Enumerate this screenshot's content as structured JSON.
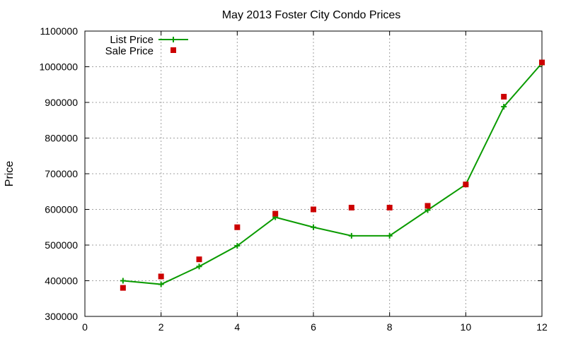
{
  "chart_data": {
    "type": "line",
    "title": "May 2013 Foster City Condo Prices",
    "xlabel": "",
    "ylabel": "Price",
    "xlim": [
      0,
      12
    ],
    "ylim": [
      300000,
      1100000
    ],
    "x_ticks": [
      0,
      2,
      4,
      6,
      8,
      10,
      12
    ],
    "y_ticks": [
      300000,
      400000,
      500000,
      600000,
      700000,
      800000,
      900000,
      1000000,
      1100000
    ],
    "grid": true,
    "legend": "top-left",
    "series": [
      {
        "name": "List Price",
        "style": "line-with-plus-markers",
        "color": "#0a9b00",
        "x": [
          1,
          2,
          3,
          4,
          5,
          6,
          7,
          8,
          9,
          10,
          11,
          12
        ],
        "y": [
          400000,
          390000,
          440000,
          498000,
          578000,
          550000,
          526000,
          526000,
          598000,
          670000,
          888000,
          1010000
        ]
      },
      {
        "name": "Sale Price",
        "style": "square-markers",
        "color": "#cc0000",
        "x": [
          1,
          2,
          3,
          4,
          5,
          6,
          7,
          8,
          9,
          10,
          11,
          12
        ],
        "y": [
          380000,
          412000,
          460000,
          550000,
          588000,
          600000,
          605000,
          605000,
          610000,
          670000,
          916000,
          1012000
        ]
      }
    ]
  }
}
